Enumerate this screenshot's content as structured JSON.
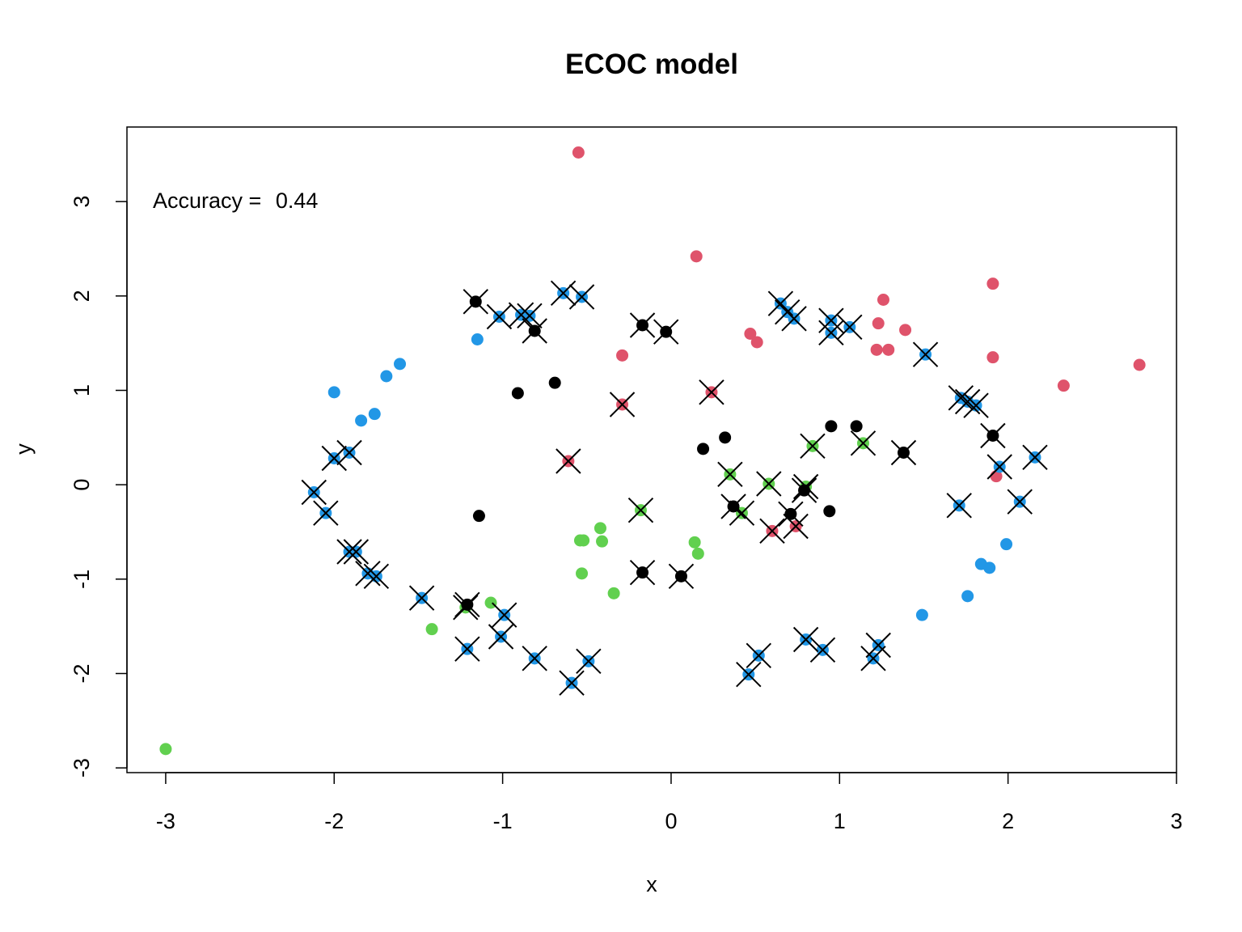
{
  "chart_data": {
    "type": "scatter",
    "title": "ECOC model",
    "xlabel": "x",
    "ylabel": "y",
    "xlim": [
      -3.23,
      3.0
    ],
    "ylim": [
      -3.05,
      3.79
    ],
    "xticks": [
      -3,
      -2,
      -1,
      0,
      1,
      2,
      3
    ],
    "xtick_labels": [
      "-3",
      "-2",
      "-1",
      "0",
      "1",
      "2",
      "3"
    ],
    "yticks": [
      -3,
      -2,
      -1,
      0,
      1,
      2,
      3
    ],
    "ytick_labels": [
      "-3",
      "-2",
      "-1",
      "0",
      "1",
      "2",
      "3"
    ],
    "grid": false,
    "legend": "none",
    "annotation": {
      "label": "Accuracy = ",
      "value": "0.44"
    },
    "colors": {
      "black": "#000000",
      "red": "#DF536B",
      "green": "#61D04F",
      "blue": "#2297E6",
      "cross": "#000000"
    },
    "series": [
      {
        "color_key": "red",
        "points": [
          [
            -0.55,
            3.52
          ],
          [
            0.15,
            2.42
          ],
          [
            1.91,
            2.13
          ],
          [
            1.26,
            1.96
          ],
          [
            1.23,
            1.71
          ],
          [
            1.39,
            1.64
          ],
          [
            0.47,
            1.6
          ],
          [
            0.51,
            1.51
          ],
          [
            1.22,
            1.43
          ],
          [
            1.29,
            1.43
          ],
          [
            -0.29,
            1.37
          ],
          [
            1.91,
            1.35
          ],
          [
            2.78,
            1.27
          ],
          [
            2.33,
            1.05
          ],
          [
            -0.29,
            0.85
          ],
          [
            0.24,
            0.98
          ],
          [
            -0.61,
            0.25
          ],
          [
            1.93,
            0.09
          ],
          [
            0.6,
            -0.49
          ],
          [
            0.74,
            -0.44
          ]
        ],
        "crossed": [
          false,
          false,
          false,
          false,
          false,
          false,
          false,
          false,
          false,
          false,
          false,
          false,
          false,
          false,
          true,
          true,
          true,
          false,
          true,
          true
        ]
      },
      {
        "color_key": "green",
        "points": [
          [
            0.84,
            0.41
          ],
          [
            1.14,
            0.44
          ],
          [
            0.35,
            0.11
          ],
          [
            0.58,
            0.01
          ],
          [
            0.8,
            -0.02
          ],
          [
            -0.18,
            -0.27
          ],
          [
            0.42,
            -0.3
          ],
          [
            -0.54,
            -0.59
          ],
          [
            -0.52,
            -0.59
          ],
          [
            -0.42,
            -0.46
          ],
          [
            -0.41,
            -0.6
          ],
          [
            0.14,
            -0.61
          ],
          [
            0.16,
            -0.73
          ],
          [
            -0.53,
            -0.94
          ],
          [
            -0.34,
            -1.15
          ],
          [
            -1.07,
            -1.25
          ],
          [
            -1.22,
            -1.3
          ],
          [
            -1.42,
            -1.53
          ],
          [
            -3.0,
            -2.8
          ]
        ],
        "crossed": [
          true,
          true,
          true,
          true,
          true,
          true,
          true,
          false,
          false,
          false,
          false,
          false,
          false,
          false,
          false,
          false,
          true,
          false,
          false
        ]
      },
      {
        "color_key": "blue",
        "points": [
          [
            -0.64,
            2.03
          ],
          [
            -0.53,
            1.99
          ],
          [
            -1.02,
            1.78
          ],
          [
            -0.89,
            1.8
          ],
          [
            -0.84,
            1.79
          ],
          [
            -1.15,
            1.54
          ],
          [
            -1.61,
            1.28
          ],
          [
            -1.69,
            1.15
          ],
          [
            -2.0,
            0.98
          ],
          [
            -1.76,
            0.75
          ],
          [
            -1.84,
            0.68
          ],
          [
            -2.0,
            0.28
          ],
          [
            -1.91,
            0.34
          ],
          [
            -2.12,
            -0.08
          ],
          [
            -2.05,
            -0.3
          ],
          [
            -1.91,
            -0.71
          ],
          [
            -1.87,
            -0.71
          ],
          [
            -1.8,
            -0.94
          ],
          [
            -1.75,
            -0.97
          ],
          [
            -1.48,
            -1.2
          ],
          [
            -1.21,
            -1.74
          ],
          [
            -1.01,
            -1.61
          ],
          [
            -0.99,
            -1.38
          ],
          [
            -0.81,
            -1.84
          ],
          [
            -0.59,
            -2.1
          ],
          [
            -0.49,
            -1.87
          ],
          [
            0.46,
            -2.01
          ],
          [
            0.52,
            -1.81
          ],
          [
            0.8,
            -1.64
          ],
          [
            0.9,
            -1.75
          ],
          [
            1.2,
            -1.84
          ],
          [
            1.23,
            -1.7
          ],
          [
            1.49,
            -1.38
          ],
          [
            1.76,
            -1.18
          ],
          [
            1.84,
            -0.84
          ],
          [
            1.99,
            -0.63
          ],
          [
            1.89,
            -0.88
          ],
          [
            1.71,
            -0.22
          ],
          [
            2.07,
            -0.18
          ],
          [
            1.95,
            0.19
          ],
          [
            2.16,
            0.29
          ],
          [
            1.72,
            0.92
          ],
          [
            1.76,
            0.88
          ],
          [
            1.81,
            0.84
          ],
          [
            1.51,
            1.38
          ],
          [
            0.95,
            1.74
          ],
          [
            0.95,
            1.61
          ],
          [
            1.06,
            1.67
          ],
          [
            0.65,
            1.92
          ],
          [
            0.69,
            1.83
          ],
          [
            0.73,
            1.76
          ]
        ],
        "crossed": [
          true,
          true,
          true,
          true,
          true,
          false,
          false,
          false,
          false,
          false,
          false,
          true,
          true,
          true,
          true,
          true,
          true,
          true,
          true,
          true,
          true,
          true,
          true,
          true,
          true,
          true,
          true,
          true,
          true,
          true,
          true,
          true,
          false,
          false,
          false,
          false,
          false,
          true,
          true,
          true,
          true,
          true,
          true,
          true,
          true,
          true,
          true,
          true,
          true,
          true,
          true
        ]
      },
      {
        "color_key": "black",
        "points": [
          [
            -1.16,
            1.94
          ],
          [
            -0.81,
            1.63
          ],
          [
            -0.17,
            1.69
          ],
          [
            -0.03,
            1.62
          ],
          [
            -0.69,
            1.08
          ],
          [
            -0.91,
            0.97
          ],
          [
            0.19,
            0.38
          ],
          [
            0.32,
            0.5
          ],
          [
            0.95,
            0.62
          ],
          [
            1.1,
            0.62
          ],
          [
            1.38,
            0.34
          ],
          [
            1.91,
            0.52
          ],
          [
            0.37,
            -0.23
          ],
          [
            0.79,
            -0.06
          ],
          [
            0.71,
            -0.31
          ],
          [
            0.94,
            -0.28
          ],
          [
            -1.14,
            -0.33
          ],
          [
            -0.17,
            -0.93
          ],
          [
            0.06,
            -0.97
          ],
          [
            -1.21,
            -1.27
          ]
        ],
        "crossed": [
          true,
          true,
          true,
          true,
          false,
          false,
          false,
          false,
          false,
          false,
          true,
          true,
          true,
          true,
          true,
          false,
          false,
          true,
          true,
          true
        ]
      }
    ]
  }
}
